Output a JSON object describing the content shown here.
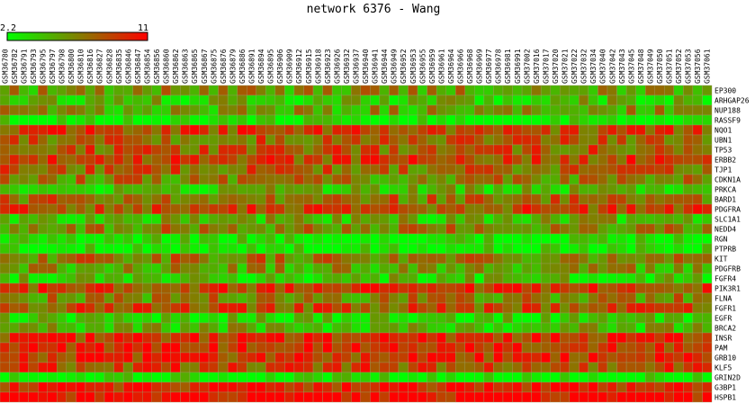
{
  "chart_data": {
    "type": "heatmap",
    "title": "network 6376 - Wang",
    "colorbar": {
      "min_label": "2.2",
      "max_label": "11",
      "min_value": 2.2,
      "max_value": 11,
      "low_color": "#00ff00",
      "mid_color": "#808000",
      "high_color": "#ff0000"
    },
    "columns": [
      "GSM36780",
      "GSM36782",
      "GSM36791",
      "GSM36793",
      "GSM36795",
      "GSM36797",
      "GSM36798",
      "GSM36800",
      "GSM36810",
      "GSM36816",
      "GSM36827",
      "GSM36828",
      "GSM36835",
      "GSM36846",
      "GSM36847",
      "GSM36854",
      "GSM36856",
      "GSM36860",
      "GSM36862",
      "GSM36863",
      "GSM36865",
      "GSM36867",
      "GSM36875",
      "GSM36876",
      "GSM36879",
      "GSM36886",
      "GSM36891",
      "GSM36894",
      "GSM36895",
      "GSM36906",
      "GSM36909",
      "GSM36912",
      "GSM36915",
      "GSM36918",
      "GSM36923",
      "GSM36926",
      "GSM36932",
      "GSM36937",
      "GSM36940",
      "GSM36941",
      "GSM36944",
      "GSM36949",
      "GSM36952",
      "GSM36953",
      "GSM36955",
      "GSM36959",
      "GSM36961",
      "GSM36964",
      "GSM36966",
      "GSM36968",
      "GSM36969",
      "GSM36977",
      "GSM36978",
      "GSM36981",
      "GSM36991",
      "GSM37002",
      "GSM37016",
      "GSM37017",
      "GSM37020",
      "GSM37021",
      "GSM37022",
      "GSM37032",
      "GSM37034",
      "GSM37040",
      "GSM37042",
      "GSM37043",
      "GSM37045",
      "GSM37048",
      "GSM37049",
      "GSM37050",
      "GSM37051",
      "GSM37052",
      "GSM37053",
      "GSM37056",
      "GSM37061"
    ],
    "rows": [
      {
        "gene": "EP300",
        "base": 0.42
      },
      {
        "gene": "ARHGAP26",
        "base": 0.28
      },
      {
        "gene": "NUP188",
        "base": 0.38
      },
      {
        "gene": "RASSF9",
        "base": 0.05
      },
      {
        "gene": "NQO1",
        "base": 0.72
      },
      {
        "gene": "UBN1",
        "base": 0.62
      },
      {
        "gene": "TP53",
        "base": 0.66
      },
      {
        "gene": "ERBB2",
        "base": 0.74
      },
      {
        "gene": "TJP1",
        "base": 0.62
      },
      {
        "gene": "CDKN1A",
        "base": 0.5
      },
      {
        "gene": "PRKCA",
        "base": 0.28
      },
      {
        "gene": "BARD1",
        "base": 0.58
      },
      {
        "gene": "PDGFRA",
        "base": 0.72
      },
      {
        "gene": "SLC1A1",
        "base": 0.3
      },
      {
        "gene": "NEDD4",
        "base": 0.5
      },
      {
        "gene": "RGN",
        "base": 0.08
      },
      {
        "gene": "PTPRB",
        "base": 0.05
      },
      {
        "gene": "KIT",
        "base": 0.55
      },
      {
        "gene": "PDGFRB",
        "base": 0.4
      },
      {
        "gene": "FGFR4",
        "base": 0.22
      },
      {
        "gene": "PIK3R1",
        "base": 0.72
      },
      {
        "gene": "FLNA",
        "base": 0.5
      },
      {
        "gene": "FGFR1",
        "base": 0.68
      },
      {
        "gene": "EGFR",
        "base": 0.18
      },
      {
        "gene": "BRCA2",
        "base": 0.3
      },
      {
        "gene": "INSR",
        "base": 0.82
      },
      {
        "gene": "PAM",
        "base": 0.85
      },
      {
        "gene": "GRB10",
        "base": 0.8
      },
      {
        "gene": "KLF5",
        "base": 0.72
      },
      {
        "gene": "GRIN2D",
        "base": 0.05
      },
      {
        "gene": "G3BP1",
        "base": 0.92
      },
      {
        "gene": "HSPB1",
        "base": 0.97
      }
    ]
  }
}
